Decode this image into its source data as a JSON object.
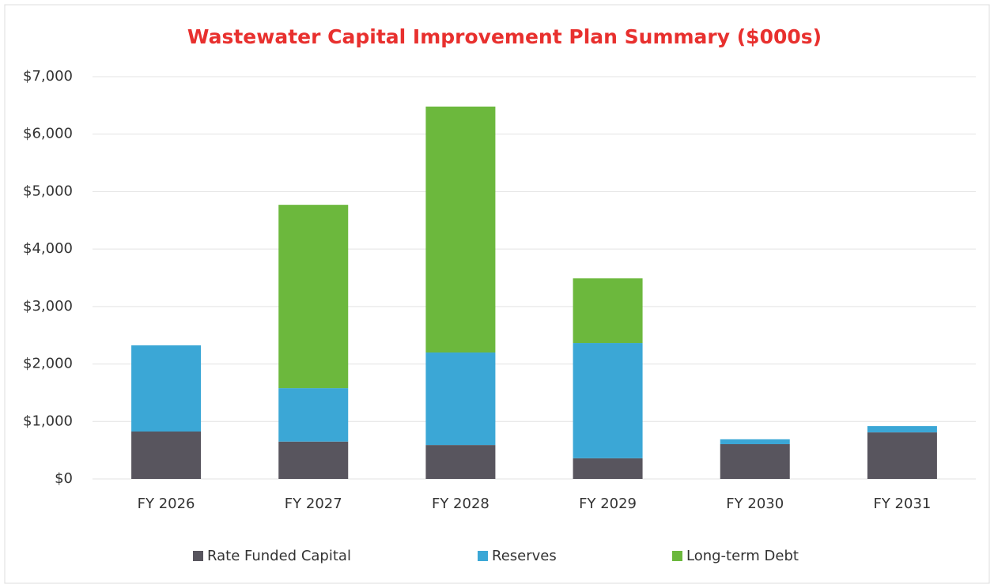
{
  "chart_data": {
    "type": "stacked_bar",
    "title": "Wastewater Capital Improvement Plan Summary ($000s)",
    "categories": [
      "FY 2026",
      "FY 2027",
      "FY 2028",
      "FY 2029",
      "FY 2030",
      "FY 2031"
    ],
    "series": [
      {
        "name": "Rate Funded Capital",
        "color": "#58555e",
        "values": [
          825,
          650,
          590,
          360,
          605,
          810
        ]
      },
      {
        "name": "Reserves",
        "color": "#3ba7d6",
        "values": [
          1500,
          930,
          1610,
          2005,
          85,
          110
        ]
      },
      {
        "name": "Long-term Debt",
        "color": "#6cb83d",
        "values": [
          0,
          3190,
          4280,
          1125,
          0,
          0
        ]
      }
    ],
    "ylim": [
      0,
      7000
    ],
    "yticks": [
      {
        "value": 0,
        "label": "$0"
      },
      {
        "value": 1000,
        "label": "$1,000"
      },
      {
        "value": 2000,
        "label": "$2,000"
      },
      {
        "value": 3000,
        "label": "$3,000"
      },
      {
        "value": 4000,
        "label": "$4,000"
      },
      {
        "value": 5000,
        "label": "$5,000"
      },
      {
        "value": 6000,
        "label": "$6,000"
      },
      {
        "value": 7000,
        "label": "$7,000"
      }
    ],
    "grid": true,
    "legend": "bottom"
  }
}
